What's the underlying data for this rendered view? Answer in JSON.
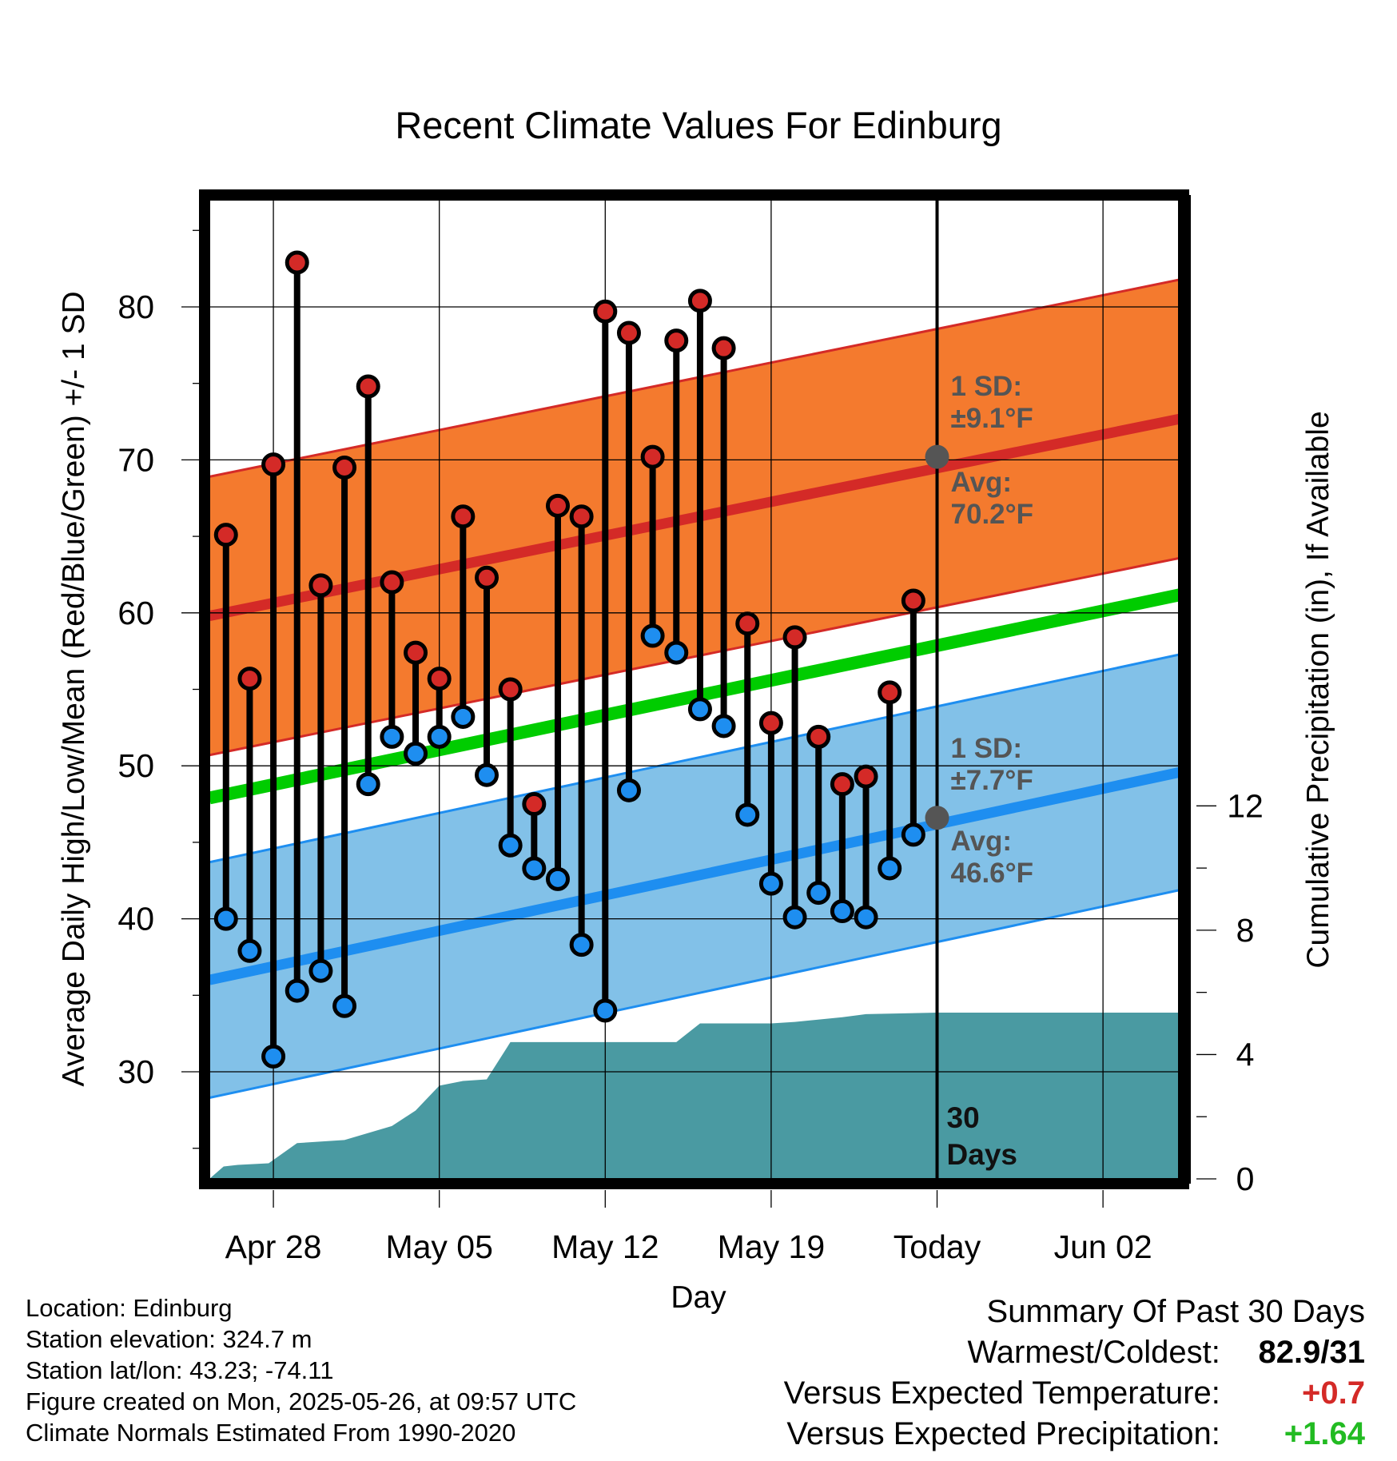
{
  "chart_data": {
    "type": "line",
    "title": "Recent Climate Values For Edinburg",
    "xlabel": "Day",
    "ylabel": "Average Daily High/Low/Mean (Red/Blue/Green) +/- 1 SD",
    "y2label": "Cumulative Precipitation (in), If Available",
    "ylim": [
      23,
      87
    ],
    "y2lim": [
      0,
      31.5
    ],
    "xlim": [
      -2.7,
      38.3
    ],
    "x_ticks": [
      {
        "day": 0,
        "label": "Apr 28"
      },
      {
        "day": 7,
        "label": "May 05"
      },
      {
        "day": 14,
        "label": "May 12"
      },
      {
        "day": 21,
        "label": "May 19"
      },
      {
        "day": 28,
        "label": "Today"
      },
      {
        "day": 35,
        "label": "Jun 02"
      }
    ],
    "y_ticks": [
      30,
      40,
      50,
      60,
      70,
      80
    ],
    "y_ticks_labels": [
      "30",
      "40",
      "50",
      "60",
      "70",
      "80"
    ],
    "y2_ticks": [
      0,
      4,
      8,
      12
    ],
    "y2_ticks_labels": [
      "0",
      "4",
      "8",
      "12"
    ],
    "today_day": 28,
    "days": [
      -2,
      -1,
      0,
      1,
      2,
      3,
      4,
      5,
      6,
      7,
      8,
      9,
      10,
      11,
      12,
      13,
      14,
      15,
      16,
      17,
      18,
      19,
      20,
      21,
      22,
      23,
      24,
      25,
      26,
      27
    ],
    "highs": [
      65.1,
      55.7,
      69.7,
      82.9,
      61.8,
      69.5,
      74.8,
      62.0,
      57.4,
      55.7,
      66.3,
      62.3,
      55.0,
      47.5,
      67.0,
      66.3,
      79.7,
      78.3,
      70.2,
      77.8,
      80.4,
      77.3,
      59.3,
      52.8,
      58.4,
      51.9,
      48.8,
      49.3,
      54.8,
      60.8
    ],
    "lows": [
      40.0,
      37.9,
      31.0,
      35.3,
      36.6,
      34.3,
      48.8,
      51.9,
      50.8,
      51.9,
      53.2,
      49.4,
      44.8,
      43.3,
      42.6,
      38.3,
      34.0,
      48.4,
      58.5,
      57.4,
      53.7,
      52.6,
      46.8,
      42.3,
      40.1,
      41.7,
      40.5,
      40.1,
      43.3,
      45.5
    ],
    "normal_high": {
      "start": 59.8,
      "end": 72.7,
      "sd": 9.1
    },
    "normal_low": {
      "start": 36.0,
      "end": 49.6,
      "sd": 7.7
    },
    "normal_mean": {
      "start": 47.9,
      "end": 61.2
    },
    "precip_cumulative": [
      {
        "day": -2.7,
        "in": 0.0
      },
      {
        "day": -2.1,
        "in": 0.4
      },
      {
        "day": -1.5,
        "in": 0.45
      },
      {
        "day": -0.2,
        "in": 0.5
      },
      {
        "day": 1.0,
        "in": 1.15
      },
      {
        "day": 3.0,
        "in": 1.25
      },
      {
        "day": 5.0,
        "in": 1.7
      },
      {
        "day": 6.0,
        "in": 2.2
      },
      {
        "day": 7.0,
        "in": 3.0
      },
      {
        "day": 8.0,
        "in": 3.15
      },
      {
        "day": 9.0,
        "in": 3.2
      },
      {
        "day": 10.0,
        "in": 4.4
      },
      {
        "day": 17.0,
        "in": 4.4
      },
      {
        "day": 18.0,
        "in": 5.0
      },
      {
        "day": 21.0,
        "in": 5.0
      },
      {
        "day": 22.0,
        "in": 5.05
      },
      {
        "day": 24.0,
        "in": 5.2
      },
      {
        "day": 25.0,
        "in": 5.3
      },
      {
        "day": 28.0,
        "in": 5.35
      },
      {
        "day": 38.3,
        "in": 5.35
      }
    ],
    "high_annotation": {
      "sd_title": "1 SD:",
      "sd": "±9.1°F",
      "avg_title": "Avg:",
      "avg": "70.2°F",
      "value": 70.2
    },
    "low_annotation": {
      "sd_title": "1 SD:",
      "sd": "±7.7°F",
      "avg_title": "Avg:",
      "avg": "46.6°F",
      "value": 46.6
    },
    "period_label": "30 Days",
    "colors": {
      "high_band": "#f47a2e",
      "high_line": "#d42a27",
      "low_band": "#82c1e8",
      "low_line": "#1e8ef0",
      "mean_line": "#00cc00",
      "precip": "#4a9aa2",
      "high_marker": "#d42a27",
      "low_marker": "#1e8ef0",
      "annotation": "#555555"
    }
  },
  "footer": {
    "location": "Location: Edinburg",
    "elevation": "Station elevation: 324.7 m",
    "latlon": "Station lat/lon: 43.23; -74.11",
    "created": "Figure created on Mon, 2025-05-26, at 09:57 UTC",
    "normals": "Climate Normals Estimated From 1990-2020"
  },
  "summary": {
    "title": "Summary Of Past 30 Days",
    "warmest_label": "Warmest/Coldest:",
    "warmest_value": "82.9/31",
    "temp_label": "Versus Expected Temperature:",
    "temp_value": "+0.7",
    "temp_color": "#d42a27",
    "precip_label": "Versus Expected Precipitation:",
    "precip_value": "+1.64",
    "precip_color": "#22bb22"
  }
}
